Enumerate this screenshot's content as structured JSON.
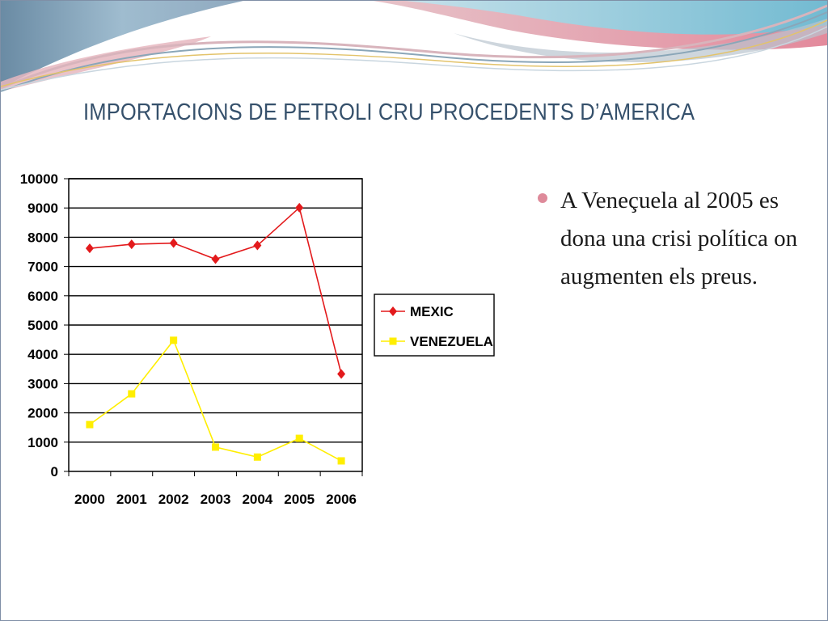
{
  "slide": {
    "title": "IMPORTACIONS DE PETROLI CRU PROCEDENTS D’AMERICA",
    "bullets": [
      "A Veneçuela al 2005 es dona una crisi política on augmenten els preus."
    ],
    "colors": {
      "title": "#35506b",
      "bullet": "#de8a9a",
      "frame": "#7f8fa6"
    }
  },
  "chart_data": {
    "type": "line",
    "title": "",
    "xlabel": "",
    "ylabel": "",
    "categories": [
      "2000",
      "2001",
      "2002",
      "2003",
      "2004",
      "2005",
      "2006"
    ],
    "ylim": [
      0,
      10000
    ],
    "yticks": [
      "0",
      "1000",
      "2000",
      "3000",
      "4000",
      "5000",
      "6000",
      "7000",
      "8000",
      "9000",
      "10000"
    ],
    "grid": true,
    "legend_position": "right",
    "series": [
      {
        "name": "MEXIC",
        "color": "#e31a1c",
        "marker": "diamond",
        "values": [
          7620,
          7760,
          7800,
          7250,
          7720,
          9010,
          3330
        ]
      },
      {
        "name": "VENEZUELA",
        "color": "#ffee00",
        "marker": "square",
        "values": [
          1600,
          2650,
          4480,
          830,
          490,
          1130,
          360
        ]
      }
    ]
  }
}
